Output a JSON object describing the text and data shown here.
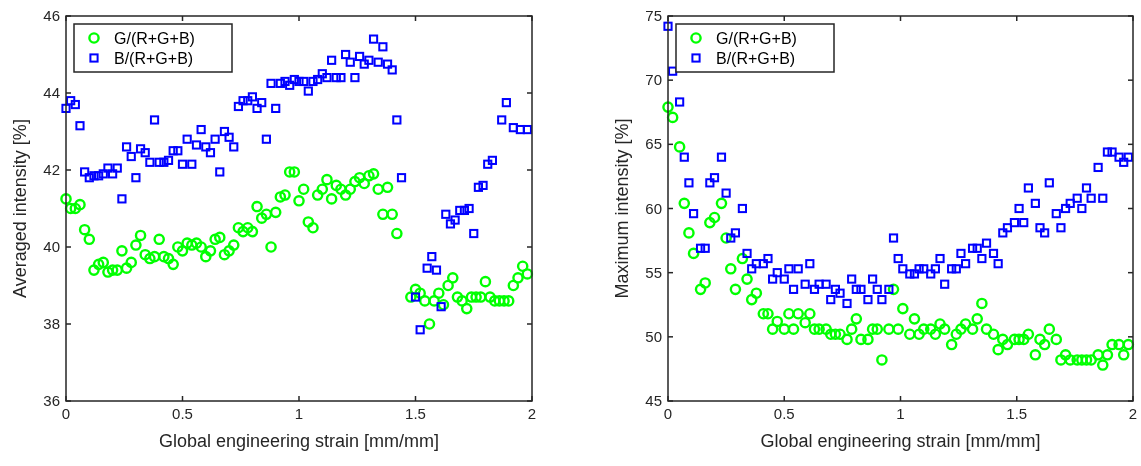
{
  "chart_data": [
    {
      "type": "scatter",
      "xlabel": "Global engineering strain [mm/mm]",
      "ylabel": "Averaged intensity [%]",
      "xlim": [
        0,
        2
      ],
      "xticks": [
        0,
        0.5,
        1,
        1.5,
        2
      ],
      "ylim": [
        36,
        46
      ],
      "yticks": [
        36,
        38,
        40,
        42,
        44,
        46
      ],
      "grid": false,
      "legend": "top left",
      "series": [
        {
          "name": "G/(R+G+B)",
          "color": "#00ff00",
          "marker": "circle",
          "x": [
            0,
            0.02,
            0.04,
            0.06,
            0.08,
            0.1,
            0.12,
            0.14,
            0.16,
            0.18,
            0.2,
            0.22,
            0.24,
            0.26,
            0.28,
            0.3,
            0.32,
            0.34,
            0.36,
            0.38,
            0.4,
            0.42,
            0.44,
            0.46,
            0.48,
            0.5,
            0.52,
            0.54,
            0.56,
            0.58,
            0.6,
            0.62,
            0.64,
            0.66,
            0.68,
            0.7,
            0.72,
            0.74,
            0.76,
            0.78,
            0.8,
            0.82,
            0.84,
            0.86,
            0.88,
            0.9,
            0.92,
            0.94,
            0.96,
            0.98,
            1,
            1.02,
            1.04,
            1.06,
            1.08,
            1.1,
            1.12,
            1.14,
            1.16,
            1.18,
            1.2,
            1.22,
            1.24,
            1.26,
            1.28,
            1.3,
            1.32,
            1.34,
            1.36,
            1.38,
            1.4,
            1.42,
            1.48,
            1.5,
            1.52,
            1.54,
            1.56,
            1.58,
            1.6,
            1.62,
            1.64,
            1.66,
            1.68,
            1.7,
            1.72,
            1.74,
            1.76,
            1.78,
            1.8,
            1.82,
            1.84,
            1.86,
            1.88,
            1.9,
            1.92,
            1.94,
            1.96,
            1.98
          ],
          "values": [
            41.25,
            41.0,
            41.0,
            41.1,
            40.45,
            40.2,
            39.4,
            39.55,
            39.6,
            39.35,
            39.4,
            39.4,
            39.9,
            39.45,
            39.6,
            40.05,
            40.3,
            39.8,
            39.7,
            39.75,
            40.2,
            39.75,
            39.7,
            39.55,
            40.0,
            39.9,
            40.1,
            40.05,
            40.1,
            40.0,
            39.75,
            39.9,
            40.2,
            40.25,
            39.8,
            39.9,
            40.05,
            40.5,
            40.4,
            40.5,
            40.4,
            41.05,
            40.75,
            40.85,
            40.0,
            40.9,
            41.3,
            41.35,
            41.95,
            41.95,
            41.2,
            41.5,
            40.65,
            40.5,
            41.35,
            41.5,
            41.75,
            41.25,
            41.6,
            41.5,
            41.35,
            41.5,
            41.7,
            41.8,
            41.65,
            41.85,
            41.9,
            41.5,
            40.85,
            41.55,
            40.85,
            40.35,
            38.7,
            38.9,
            38.8,
            38.6,
            38.0,
            38.6,
            38.8,
            38.5,
            39.0,
            39.2,
            38.7,
            38.6,
            38.4,
            38.7,
            38.7,
            38.7,
            39.1,
            38.7,
            38.6,
            38.6,
            38.6,
            38.6,
            39.0,
            39.2,
            39.5,
            39.3
          ]
        },
        {
          "name": "B/(R+G+B)",
          "color": "#0000ff",
          "marker": "square",
          "x": [
            0,
            0.02,
            0.04,
            0.06,
            0.08,
            0.1,
            0.12,
            0.14,
            0.16,
            0.18,
            0.2,
            0.22,
            0.24,
            0.26,
            0.28,
            0.3,
            0.32,
            0.34,
            0.36,
            0.38,
            0.4,
            0.42,
            0.44,
            0.46,
            0.48,
            0.5,
            0.52,
            0.54,
            0.56,
            0.58,
            0.6,
            0.62,
            0.64,
            0.66,
            0.68,
            0.7,
            0.72,
            0.74,
            0.76,
            0.78,
            0.8,
            0.82,
            0.84,
            0.86,
            0.88,
            0.9,
            0.92,
            0.94,
            0.96,
            0.98,
            1,
            1.02,
            1.04,
            1.06,
            1.08,
            1.1,
            1.12,
            1.14,
            1.16,
            1.18,
            1.2,
            1.22,
            1.24,
            1.26,
            1.28,
            1.3,
            1.32,
            1.34,
            1.36,
            1.38,
            1.4,
            1.42,
            1.44,
            1.5,
            1.52,
            1.55,
            1.57,
            1.59,
            1.61,
            1.63,
            1.65,
            1.67,
            1.69,
            1.71,
            1.73,
            1.75,
            1.77,
            1.79,
            1.81,
            1.83,
            1.87,
            1.89,
            1.92,
            1.95,
            1.98
          ],
          "values": [
            43.6,
            43.8,
            43.7,
            43.15,
            41.95,
            41.8,
            41.85,
            41.85,
            41.9,
            42.05,
            41.9,
            42.05,
            41.25,
            42.6,
            42.35,
            41.8,
            42.55,
            42.45,
            42.2,
            43.3,
            42.2,
            42.2,
            42.25,
            42.5,
            42.5,
            42.15,
            42.8,
            42.15,
            42.65,
            43.05,
            42.6,
            42.45,
            42.8,
            41.95,
            43.0,
            42.85,
            42.6,
            43.65,
            43.8,
            43.8,
            43.9,
            43.6,
            43.75,
            42.8,
            44.25,
            43.6,
            44.25,
            44.3,
            44.2,
            44.35,
            44.3,
            44.3,
            44.05,
            44.3,
            44.35,
            44.5,
            44.4,
            44.85,
            44.4,
            44.4,
            45.0,
            44.8,
            44.4,
            44.95,
            44.75,
            44.85,
            45.4,
            44.8,
            45.2,
            44.75,
            44.6,
            43.3,
            41.8,
            38.7,
            37.85,
            39.45,
            39.75,
            39.4,
            38.45,
            40.85,
            40.6,
            40.7,
            40.95,
            40.95,
            41.0,
            40.35,
            41.55,
            41.6,
            42.15,
            42.25,
            43.3,
            43.75,
            43.1,
            43.05,
            43.05
          ]
        }
      ]
    },
    {
      "type": "scatter",
      "xlabel": "Global engineering strain [mm/mm]",
      "ylabel": "Maximum intensity [%]",
      "xlim": [
        0,
        2
      ],
      "xticks": [
        0,
        0.5,
        1,
        1.5,
        2
      ],
      "ylim": [
        45,
        75
      ],
      "yticks": [
        45,
        50,
        55,
        60,
        65,
        70,
        75
      ],
      "grid": false,
      "legend": "top left",
      "x": [
        0,
        0.02,
        0.05,
        0.07,
        0.09,
        0.11,
        0.14,
        0.16,
        0.18,
        0.2,
        0.23,
        0.25,
        0.27,
        0.29,
        0.32,
        0.34,
        0.36,
        0.38,
        0.41,
        0.43,
        0.45,
        0.47,
        0.5,
        0.52,
        0.54,
        0.56,
        0.59,
        0.61,
        0.63,
        0.65,
        0.68,
        0.7,
        0.72,
        0.74,
        0.77,
        0.79,
        0.81,
        0.83,
        0.86,
        0.88,
        0.9,
        0.92,
        0.95,
        0.97,
        0.99,
        1.01,
        1.04,
        1.06,
        1.08,
        1.1,
        1.13,
        1.15,
        1.17,
        1.19,
        1.22,
        1.24,
        1.26,
        1.28,
        1.31,
        1.33,
        1.35,
        1.37,
        1.4,
        1.42,
        1.44,
        1.46,
        1.49,
        1.51,
        1.53,
        1.55,
        1.58,
        1.6,
        1.62,
        1.64,
        1.67,
        1.69,
        1.71,
        1.73,
        1.76,
        1.78,
        1.8,
        1.82,
        1.85,
        1.87,
        1.89,
        1.91,
        1.94,
        1.96,
        1.98
      ],
      "series": [
        {
          "name": "G/(R+G+B)",
          "color": "#00ff00",
          "marker": "circle",
          "values": [
            67.9,
            67.1,
            64.8,
            60.4,
            58.1,
            56.5,
            53.7,
            54.2,
            58.9,
            59.3,
            60.4,
            57.7,
            55.3,
            53.7,
            56.1,
            54.5,
            52.9,
            53.4,
            51.8,
            51.8,
            50.6,
            51.2,
            50.6,
            51.8,
            50.6,
            51.8,
            51.1,
            51.8,
            50.6,
            50.6,
            50.6,
            50.2,
            50.2,
            50.2,
            49.8,
            50.6,
            51.4,
            49.8,
            49.8,
            50.6,
            50.6,
            48.2,
            50.6,
            53.7,
            50.6,
            52.2,
            50.2,
            51.4,
            50.2,
            50.6,
            50.6,
            50.2,
            51.0,
            50.6,
            49.4,
            50.2,
            50.6,
            51.0,
            50.6,
            51.4,
            52.6,
            50.6,
            50.2,
            49.0,
            49.8,
            49.4,
            49.8,
            49.8,
            49.8,
            50.2,
            48.6,
            49.8,
            49.4,
            50.6,
            49.8,
            48.2,
            48.6,
            48.2,
            48.2,
            48.2,
            48.2,
            48.2,
            48.6,
            47.8,
            48.6,
            49.4,
            49.4,
            48.6,
            49.4
          ]
        },
        {
          "name": "B/(R+G+B)",
          "color": "#0000ff",
          "marker": "square",
          "values": [
            74.2,
            70.7,
            68.3,
            64.0,
            62.0,
            59.6,
            56.9,
            56.9,
            62.0,
            62.4,
            64.0,
            61.2,
            57.7,
            58.1,
            60.0,
            56.5,
            55.3,
            55.7,
            55.7,
            56.1,
            54.5,
            55.0,
            54.5,
            55.3,
            53.7,
            55.3,
            54.1,
            55.7,
            53.7,
            54.1,
            54.1,
            52.9,
            53.7,
            53.4,
            52.6,
            54.5,
            53.7,
            53.7,
            52.9,
            54.5,
            53.7,
            52.9,
            53.7,
            57.7,
            56.1,
            55.3,
            54.9,
            54.9,
            55.3,
            55.3,
            54.9,
            55.3,
            56.1,
            54.1,
            55.3,
            55.3,
            56.5,
            55.7,
            56.9,
            56.9,
            56.1,
            57.3,
            56.5,
            55.7,
            58.1,
            58.5,
            58.9,
            60.0,
            58.9,
            61.6,
            60.4,
            58.5,
            58.1,
            62.0,
            59.6,
            58.5,
            60.0,
            60.4,
            60.8,
            60.0,
            61.6,
            60.8,
            63.2,
            60.8,
            64.4,
            64.4,
            64.0,
            63.6,
            64.0
          ]
        }
      ]
    }
  ]
}
